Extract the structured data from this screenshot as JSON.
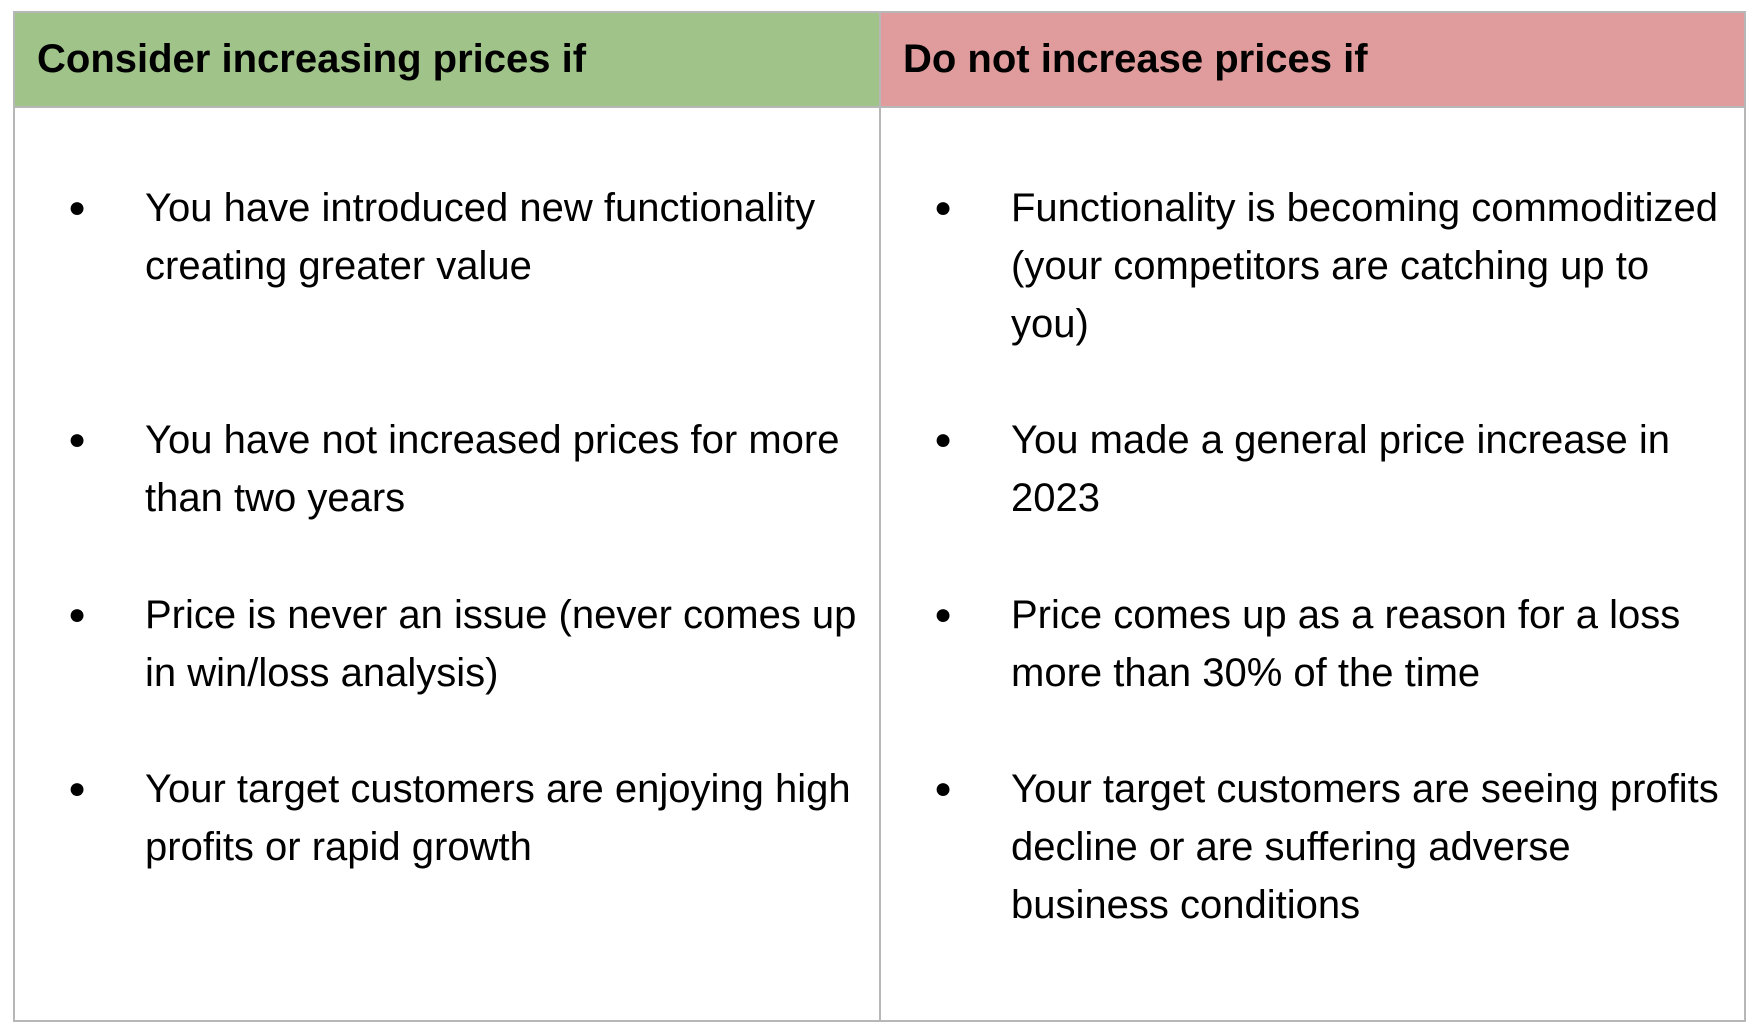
{
  "header": {
    "left_title": "Consider increasing prices if",
    "right_title": "Do not increase prices if",
    "left_color": "#9fc388",
    "right_color": "#e09c9c"
  },
  "bullet_glyph": "●",
  "left_items": [
    "You have introduced new functionality creating greater value",
    "You have not increased prices for more than two years",
    "Price is never an issue (never comes up in win/loss analysis)",
    "Your target customers are enjoying high profits or rapid growth"
  ],
  "right_items": [
    "Functionality is becoming commoditized (your competitors are catching up to you)",
    "You made a general price increase in 2023",
    "Price comes up as a reason for a loss more than 30% of the time",
    "Your target customers are seeing profits decline or are suffering adverse business conditions"
  ]
}
